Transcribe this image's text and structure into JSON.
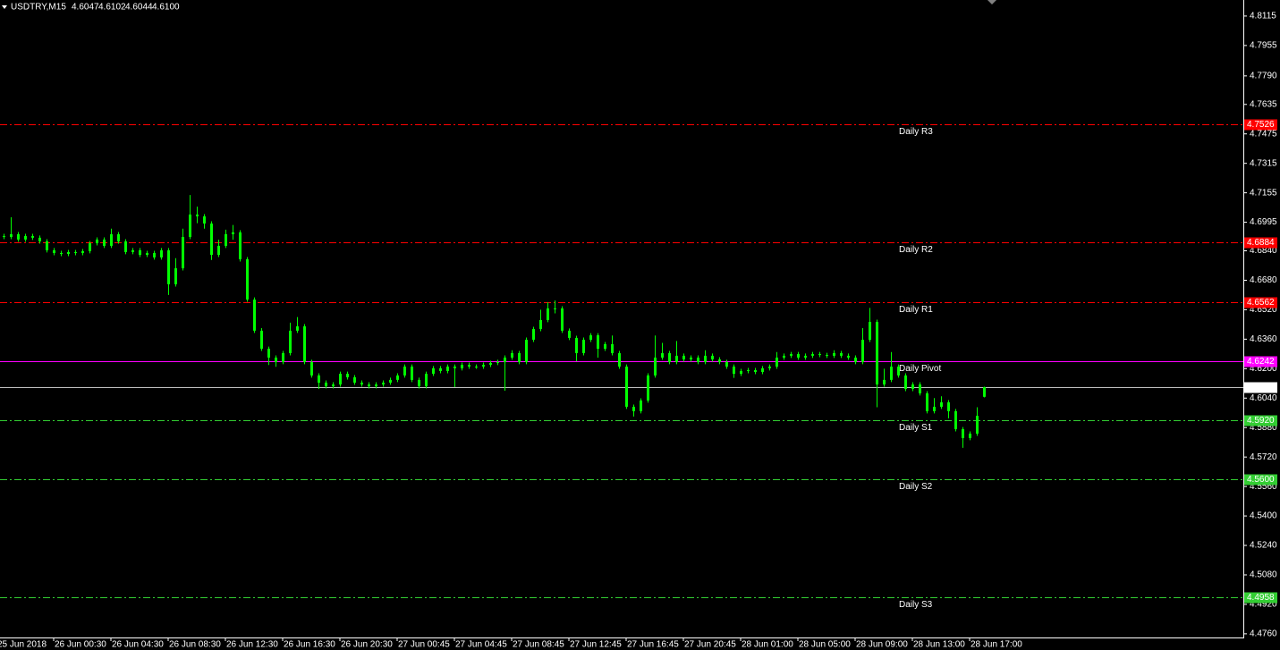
{
  "chart_data": {
    "type": "candlestick",
    "title": "USDTRY,M15",
    "header_ohlc": [
      "4.6047",
      "4.6102",
      "4.6044",
      "4.6100"
    ],
    "color": "#00ff00",
    "open": [
      4.692,
      4.6915,
      4.693,
      4.6901,
      4.692,
      4.6911,
      4.6891,
      4.6843,
      4.6828,
      4.6823,
      4.6833,
      4.6828,
      4.6838,
      4.6881,
      4.6901,
      4.6867,
      4.693,
      4.6891,
      4.6833,
      4.6843,
      4.6818,
      4.6828,
      4.6804,
      4.6843,
      4.6658,
      4.6745,
      4.6915,
      4.7037,
      4.7027,
      4.6988,
      4.6818,
      4.6867,
      4.693,
      4.694,
      4.6794,
      4.6575,
      4.6406,
      4.6308,
      4.626,
      4.6236,
      4.6284,
      4.6406,
      4.643,
      4.6236,
      4.6163,
      4.6124,
      4.6104,
      4.6114,
      4.6172,
      4.6153,
      4.6124,
      4.6114,
      4.6104,
      4.6114,
      4.6124,
      4.6139,
      4.6163,
      4.6211,
      4.6139,
      4.6104,
      4.6172,
      4.6202,
      4.6187,
      4.6211,
      4.6202,
      4.6221,
      4.6211,
      4.6211,
      4.6221,
      4.6231,
      4.6236,
      4.626,
      4.6284,
      4.6236,
      4.6357,
      4.6415,
      4.6464,
      4.6527,
      4.6527,
      4.6406,
      4.6367,
      4.6284,
      4.6357,
      4.6381,
      4.6308,
      4.6333,
      4.6284,
      4.6211,
      4.5993,
      4.5969,
      4.6027,
      4.6163,
      4.626,
      4.6284,
      4.6236,
      4.627,
      4.625,
      4.626,
      4.6236,
      4.627,
      4.625,
      4.6236,
      4.6211,
      4.6172,
      4.6187,
      4.6192,
      4.6182,
      4.6202,
      4.6211,
      4.626,
      4.627,
      4.6279,
      4.626,
      4.627,
      4.6279,
      4.6274,
      4.627,
      4.6284,
      4.627,
      4.626,
      4.6236,
      4.6357,
      4.6454,
      4.6114,
      4.6139,
      4.6211,
      4.6163,
      4.609,
      4.6114,
      4.6066,
      4.5969,
      4.5993,
      4.6017,
      4.5969,
      4.5871,
      4.5823,
      4.5847,
      4.6047
    ],
    "high": [
      4.6932,
      4.7022,
      4.6942,
      4.6932,
      4.6932,
      4.6923,
      4.6903,
      4.6855,
      4.684,
      4.6845,
      4.6845,
      4.685,
      4.6893,
      4.6913,
      4.6913,
      4.696,
      4.6942,
      4.6903,
      4.6855,
      4.6855,
      4.684,
      4.684,
      4.6855,
      4.6855,
      4.68,
      4.696,
      4.7143,
      4.708,
      4.7039,
      4.7,
      4.69,
      4.6955,
      4.698,
      4.6952,
      4.6806,
      4.6587,
      4.642,
      4.632,
      4.6272,
      4.6296,
      4.645,
      4.648,
      4.6442,
      4.6248,
      4.6175,
      4.6136,
      4.6126,
      4.6184,
      4.6184,
      4.6165,
      4.6136,
      4.6126,
      4.6126,
      4.6136,
      4.6151,
      4.6175,
      4.6223,
      4.6223,
      4.6151,
      4.6184,
      4.6214,
      4.6214,
      4.6223,
      4.6223,
      4.6233,
      4.6233,
      4.6223,
      4.6233,
      4.6243,
      4.6248,
      4.6272,
      4.63,
      4.6296,
      4.6369,
      4.6427,
      4.652,
      4.656,
      4.657,
      4.6539,
      4.6418,
      4.6379,
      4.6369,
      4.6393,
      4.6393,
      4.6345,
      4.638,
      4.6296,
      4.6223,
      4.6005,
      4.6039,
      4.6175,
      4.638,
      4.634,
      4.6296,
      4.635,
      4.6282,
      4.6272,
      4.6272,
      4.63,
      4.6282,
      4.6262,
      4.6248,
      4.6223,
      4.6199,
      4.6204,
      4.6204,
      4.6214,
      4.6223,
      4.629,
      4.6282,
      4.6291,
      4.6291,
      4.6282,
      4.6291,
      4.6291,
      4.6286,
      4.63,
      4.6296,
      4.6282,
      4.6272,
      4.642,
      4.653,
      4.6466,
      4.62,
      4.629,
      4.6223,
      4.6175,
      4.6126,
      4.6126,
      4.6078,
      4.604,
      4.605,
      4.6029,
      4.5981,
      4.5883,
      4.5859,
      4.599,
      4.6102
    ],
    "low": [
      4.6903,
      4.6903,
      4.6889,
      4.6889,
      4.6899,
      4.6879,
      4.6831,
      4.6816,
      4.6811,
      4.6811,
      4.6816,
      4.6816,
      4.6826,
      4.6869,
      4.6855,
      4.6855,
      4.6879,
      4.6821,
      4.6821,
      4.6806,
      4.6806,
      4.6792,
      4.6792,
      4.66,
      4.6646,
      4.6733,
      4.6903,
      4.699,
      4.696,
      4.679,
      4.6806,
      4.6855,
      4.69,
      4.6782,
      4.6563,
      4.6394,
      4.6296,
      4.622,
      4.621,
      4.6224,
      4.6272,
      4.6394,
      4.6224,
      4.6151,
      4.609,
      4.6092,
      4.6092,
      4.6102,
      4.6141,
      4.6112,
      4.6102,
      4.6092,
      4.6092,
      4.6102,
      4.6112,
      4.6127,
      4.6151,
      4.6127,
      4.6092,
      4.6092,
      4.616,
      4.6175,
      4.6175,
      4.61,
      4.619,
      4.6199,
      4.6199,
      4.6199,
      4.6209,
      4.6219,
      4.608,
      4.6248,
      4.6224,
      4.6224,
      4.6345,
      4.6403,
      4.6452,
      4.65,
      4.6394,
      4.6355,
      4.624,
      4.6272,
      4.6345,
      4.626,
      4.6296,
      4.6272,
      4.6199,
      4.5981,
      4.594,
      4.5957,
      4.6015,
      4.6151,
      4.6248,
      4.6224,
      4.6224,
      4.6238,
      4.6238,
      4.6224,
      4.6224,
      4.6238,
      4.6224,
      4.6199,
      4.615,
      4.616,
      4.6175,
      4.617,
      4.617,
      4.619,
      4.6199,
      4.6248,
      4.6258,
      4.6248,
      4.6248,
      4.6258,
      4.6262,
      4.6258,
      4.6258,
      4.6258,
      4.6248,
      4.6224,
      4.6224,
      4.6345,
      4.599,
      4.6102,
      4.6127,
      4.6151,
      4.6078,
      4.6078,
      4.6054,
      4.5957,
      4.5957,
      4.5981,
      4.593,
      4.5859,
      4.577,
      4.5811,
      4.5835,
      4.6044
    ],
    "close": [
      4.6915,
      4.693,
      4.6901,
      4.692,
      4.6911,
      4.6891,
      4.6843,
      4.6828,
      4.6823,
      4.6833,
      4.6828,
      4.6838,
      4.6881,
      4.6901,
      4.6867,
      4.693,
      4.6891,
      4.6833,
      4.6843,
      4.6818,
      4.6828,
      4.6804,
      4.6843,
      4.6658,
      4.6745,
      4.6915,
      4.7037,
      4.7027,
      4.6988,
      4.6818,
      4.6867,
      4.693,
      4.694,
      4.6794,
      4.6575,
      4.6406,
      4.6308,
      4.626,
      4.6236,
      4.6284,
      4.6406,
      4.643,
      4.6236,
      4.6163,
      4.6124,
      4.6104,
      4.6114,
      4.6172,
      4.6153,
      4.6124,
      4.6114,
      4.6104,
      4.6114,
      4.6124,
      4.6139,
      4.6163,
      4.6211,
      4.6139,
      4.6104,
      4.6172,
      4.6202,
      4.6187,
      4.6211,
      4.6202,
      4.6221,
      4.6211,
      4.6211,
      4.6221,
      4.6231,
      4.6236,
      4.626,
      4.6284,
      4.6236,
      4.6357,
      4.6415,
      4.6464,
      4.6527,
      4.6527,
      4.6406,
      4.6367,
      4.6284,
      4.6357,
      4.6381,
      4.6308,
      4.6333,
      4.6284,
      4.6211,
      4.5993,
      4.5969,
      4.6027,
      4.6163,
      4.626,
      4.6284,
      4.6236,
      4.627,
      4.625,
      4.626,
      4.6236,
      4.627,
      4.625,
      4.6236,
      4.6211,
      4.6172,
      4.6187,
      4.6192,
      4.6182,
      4.6202,
      4.6211,
      4.626,
      4.627,
      4.6279,
      4.626,
      4.627,
      4.6279,
      4.6274,
      4.627,
      4.6284,
      4.627,
      4.626,
      4.6236,
      4.6357,
      4.6454,
      4.6114,
      4.6139,
      4.6211,
      4.6163,
      4.609,
      4.6114,
      4.6066,
      4.5969,
      4.5993,
      4.6017,
      4.5969,
      4.5871,
      4.5823,
      4.5847,
      4.5944,
      4.61
    ],
    "xlim": [
      -0.5,
      173.25
    ],
    "xticks": [
      {
        "value": -1,
        "label": "25 Jun 2018"
      },
      {
        "value": 7,
        "label": "26 Jun 00:30"
      },
      {
        "value": 15,
        "label": "26 Jun 04:30"
      },
      {
        "value": 23,
        "label": "26 Jun 08:30"
      },
      {
        "value": 31,
        "label": "26 Jun 12:30"
      },
      {
        "value": 39,
        "label": "26 Jun 16:30"
      },
      {
        "value": 47,
        "label": "26 Jun 20:30"
      },
      {
        "value": 55,
        "label": "27 Jun 00:45"
      },
      {
        "value": 63,
        "label": "27 Jun 04:45"
      },
      {
        "value": 71,
        "label": "27 Jun 08:45"
      },
      {
        "value": 79,
        "label": "27 Jun 12:45"
      },
      {
        "value": 87,
        "label": "27 Jun 16:45"
      },
      {
        "value": 95,
        "label": "27 Jun 20:45"
      },
      {
        "value": 103,
        "label": "28 Jun 01:00"
      },
      {
        "value": 111,
        "label": "28 Jun 05:00"
      },
      {
        "value": 119,
        "label": "28 Jun 09:00"
      },
      {
        "value": 127,
        "label": "28 Jun 13:00"
      },
      {
        "value": 135,
        "label": "28 Jun 17:00"
      }
    ],
    "ylim": [
      4.474,
      4.8202
    ],
    "yticks": [
      4.8115,
      4.7955,
      {
        "value": 4.779,
        "label": "4.7790"
      },
      4.7635,
      4.7475,
      4.7315,
      4.7155,
      4.6995,
      {
        "value": 4.684,
        "label": "4.6840"
      },
      {
        "value": 4.668,
        "label": "4.6680"
      },
      {
        "value": 4.652,
        "label": "4.6520"
      },
      {
        "value": 4.636,
        "label": "4.6360"
      },
      {
        "value": 4.62,
        "label": "4.6200"
      },
      {
        "value": 4.604,
        "label": "4.6040"
      },
      {
        "value": 4.588,
        "label": "4.5880"
      },
      {
        "value": 4.572,
        "label": "4.5720"
      },
      {
        "value": 4.556,
        "label": "4.5560"
      },
      {
        "value": 4.54,
        "label": "4.5400"
      },
      {
        "value": 4.524,
        "label": "4.5240"
      },
      {
        "value": 4.508,
        "label": "4.5080"
      },
      {
        "value": 4.492,
        "label": "4.4920"
      },
      {
        "value": 4.476,
        "label": "4.4760"
      }
    ],
    "levels": [
      {
        "name": "Daily R3",
        "value": 4.7526,
        "color": "#ff0000",
        "tag_color": "#ff0000"
      },
      {
        "name": "Daily R2",
        "value": 4.6884,
        "color": "#ff0000",
        "tag_color": "#ff0000"
      },
      {
        "name": "Daily R1",
        "value": 4.6562,
        "color": "#ff0000",
        "tag_color": "#ff0000"
      },
      {
        "name": "Daily Pivot",
        "value": 4.6242,
        "color": "#ff00ff",
        "tag_color": "#ff00ff"
      },
      {
        "name": "Daily S1",
        "value": 4.592,
        "value_label": "4.5920",
        "color": "#32cd32",
        "tag_color": "#32cd32"
      },
      {
        "name": "Daily S2",
        "value": 4.56,
        "value_label": "4.5600",
        "color": "#32cd32",
        "tag_color": "#32cd32"
      },
      {
        "name": "Daily S3",
        "value": 4.4958,
        "color": "#32cd32",
        "tag_color": "#32cd32"
      }
    ],
    "last_price": {
      "value": 4.61,
      "label": "4.6100",
      "color": "#c0c0c0"
    }
  }
}
